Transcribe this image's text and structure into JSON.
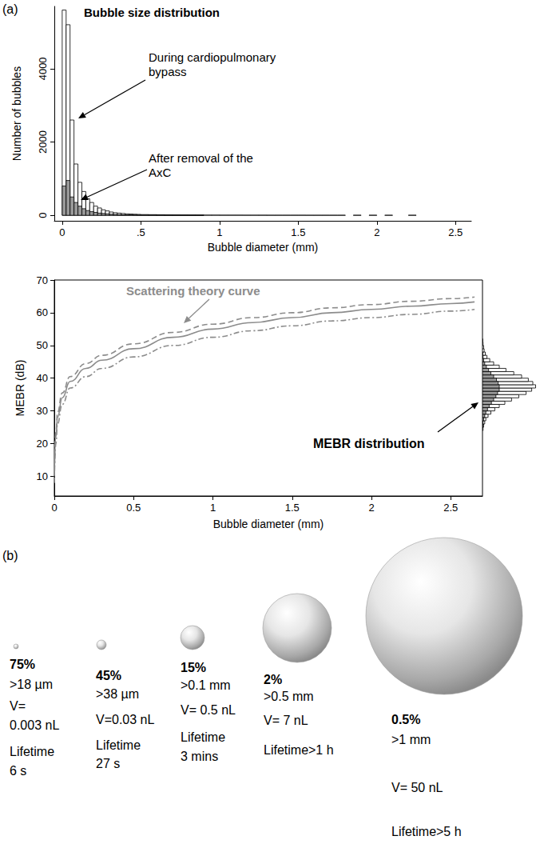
{
  "panel_labels": [
    "(a)",
    "(b)"
  ],
  "chart_data": [
    {
      "type": "histogram",
      "title": "Bubble size distribution",
      "x_label": "Bubble diameter (mm)",
      "y_label": "Number of bubbles",
      "bins": [
        0,
        0.025,
        0.05,
        0.075,
        0.1,
        0.125,
        0.15,
        0.175,
        0.2,
        0.225,
        0.25,
        0.275,
        0.3,
        0.325,
        0.35,
        0.375,
        0.4,
        0.425,
        0.45,
        0.475,
        0.5,
        0.55,
        0.6,
        0.65,
        0.7,
        0.75,
        0.8,
        0.85,
        0.9,
        0.95,
        1,
        1.05,
        1.1,
        1.15,
        1.2,
        1.25,
        1.3,
        1.35,
        1.4,
        1.45,
        1.5,
        1.55,
        1.6,
        1.65,
        1.7,
        1.75,
        1.8,
        1.85,
        1.9,
        1.95,
        2,
        2.05,
        2.1,
        2.15,
        2.2,
        2.25
      ],
      "series": [
        {
          "name": "During cardiopulmonary bypass",
          "color": "#ffffff",
          "values": [
            5600,
            5200,
            2600,
            1400,
            900,
            650,
            450,
            350,
            250,
            200,
            150,
            120,
            90,
            70,
            60,
            50,
            40,
            35,
            30,
            25,
            20,
            18,
            15,
            12,
            10,
            9,
            8,
            7,
            6,
            6,
            5,
            5,
            5,
            4,
            4,
            4,
            3,
            3,
            3,
            3,
            3,
            2,
            2,
            2,
            2,
            2,
            0,
            2,
            0,
            2,
            0,
            2,
            0,
            0,
            2
          ]
        },
        {
          "name": "After removal of the AxC",
          "color": "#999999",
          "values": [
            800,
            950,
            500,
            350,
            250,
            180,
            130,
            100,
            80,
            60,
            50,
            40,
            30,
            25,
            20,
            15,
            12,
            10,
            8,
            6,
            5,
            4,
            3,
            2,
            2,
            1,
            1,
            1,
            0,
            0,
            0,
            0,
            0,
            0,
            0,
            0,
            0,
            0,
            0,
            0,
            0,
            0,
            0,
            0,
            0,
            0,
            0,
            0,
            0,
            0,
            0,
            0,
            0,
            0,
            0
          ]
        }
      ],
      "xlim": [
        -0.05,
        2.6
      ],
      "xticks": [
        0,
        {
          "value": 0.5,
          "label": ".5"
        },
        1,
        1.5,
        2,
        2.5
      ],
      "ylim": [
        -150,
        5700
      ],
      "yticks": [
        0,
        2000,
        4000
      ],
      "grid": false
    },
    {
      "type": "line",
      "x_label": "Bubble diameter (mm)",
      "y_label": "MEBR (dB)",
      "x": [
        0,
        0.01,
        0.02,
        0.05,
        0.1,
        0.2,
        0.3,
        0.5,
        0.75,
        1,
        1.25,
        1.5,
        1.75,
        2,
        2.25,
        2.5,
        2.65
      ],
      "series": [
        {
          "name": "Scattering theory curve",
          "color": "#8c8c8c",
          "line_style": "solid",
          "values": [
            10,
            22,
            28,
            34,
            39,
            43,
            45.5,
            49,
            52.5,
            55,
            57,
            58.5,
            60,
            61,
            62,
            62.8,
            63.3
          ]
        },
        {
          "color": "#8c8c8c",
          "line_style": "dashed",
          "values": [
            11,
            23.5,
            29.5,
            35.5,
            40.5,
            44.5,
            47,
            50.5,
            54,
            56.5,
            58.5,
            60,
            61.5,
            62.5,
            63.5,
            64.3,
            64.8
          ]
        },
        {
          "color": "#8c8c8c",
          "line_style": "dashdot",
          "values": [
            8,
            20,
            26,
            32,
            37,
            40.5,
            43,
            46.5,
            50,
            52.5,
            54.5,
            56,
            57.5,
            58.5,
            59.5,
            60.5,
            61
          ]
        }
      ],
      "xlim": [
        0,
        2.7
      ],
      "xticks": [
        0,
        0.5,
        1,
        1.5,
        2,
        2.5
      ],
      "ylim": [
        4,
        70
      ],
      "yticks": [
        10,
        20,
        30,
        40,
        50,
        60,
        70
      ],
      "grid": false
    },
    {
      "type": "histogram",
      "orientation": "horizontal",
      "annotation": "MEBR distribution",
      "bins": [
        24,
        25,
        26,
        27,
        28,
        29,
        30,
        31,
        32,
        33,
        34,
        35,
        36,
        37,
        38,
        39,
        40,
        41,
        42,
        43,
        44,
        45,
        46,
        47,
        48,
        49,
        50,
        51,
        52
      ],
      "series": [
        {
          "color": "#ffffff",
          "values": [
            10,
            20,
            40,
            60,
            100,
            150,
            220,
            300,
            400,
            520,
            650,
            780,
            880,
            950,
            900,
            820,
            700,
            560,
            420,
            300,
            200,
            130,
            80,
            50,
            30,
            20,
            10,
            5
          ]
        },
        {
          "color": "#999999",
          "values": [
            0,
            5,
            10,
            20,
            40,
            60,
            90,
            120,
            160,
            200,
            240,
            270,
            300,
            300,
            280,
            250,
            200,
            150,
            110,
            70,
            40,
            20,
            10,
            5,
            0,
            0,
            0,
            0
          ]
        }
      ],
      "xlim": [
        0,
        1000
      ],
      "ylim": [
        4,
        70
      ],
      "tick_labels": false
    }
  ],
  "diagram": {
    "bubbles": [
      {
        "share": "75%",
        "size": ">18 µm",
        "volume": [
          "V=",
          "0.003 nL"
        ],
        "lifetime": [
          "Lifetime",
          "6 s"
        ]
      },
      {
        "share": "45%",
        "size": ">38 µm",
        "volume": [
          "V=0.03 nL"
        ],
        "lifetime": [
          "Lifetime",
          "27 s"
        ]
      },
      {
        "share": "15%",
        "size": ">0.1 mm",
        "volume": [
          "V= 0.5 nL"
        ],
        "lifetime": [
          "Lifetime",
          "3 mins"
        ]
      },
      {
        "share": "2%",
        "size": ">0.5 mm",
        "volume": [
          "V= 7 nL"
        ],
        "lifetime": [
          "Lifetime>1 h"
        ]
      },
      {
        "share": "0.5%",
        "size": ">1 mm",
        "volume": [
          "V= 50 nL"
        ],
        "lifetime": [
          "Lifetime>5 h"
        ]
      }
    ]
  }
}
